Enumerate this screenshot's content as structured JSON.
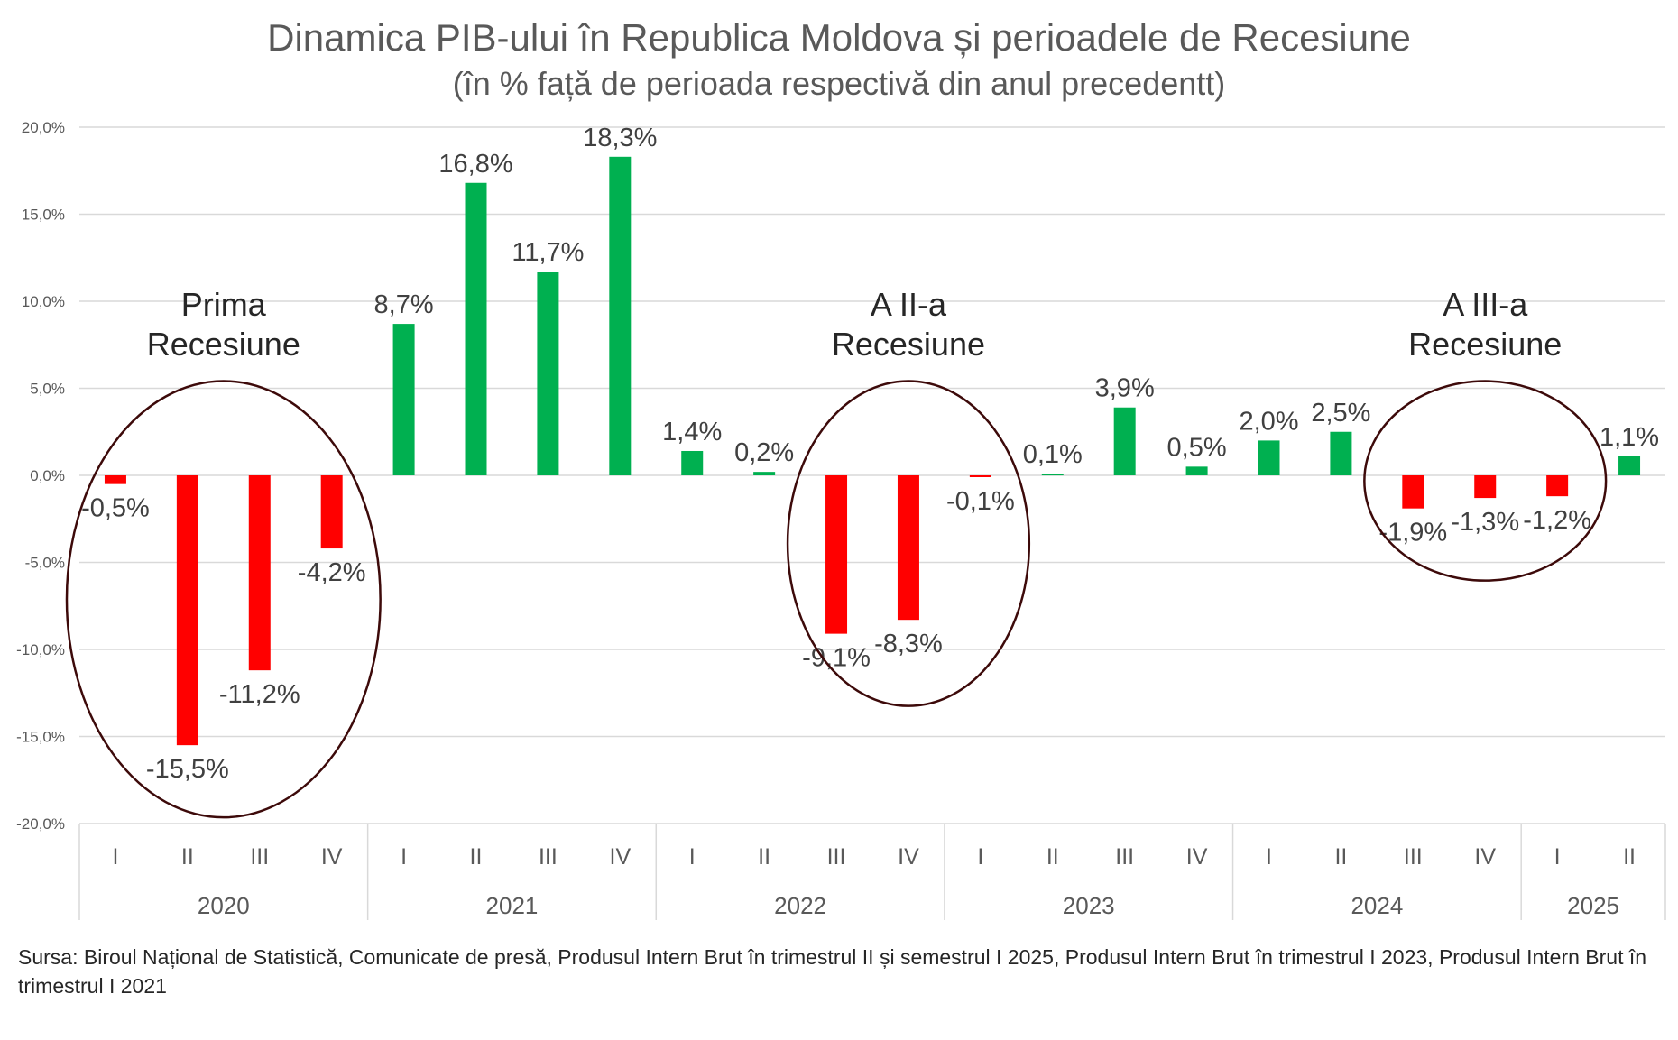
{
  "chart_data": {
    "type": "bar",
    "title": "Dinamica PIB-ului în Republica Moldova și perioadele de Recesiune",
    "subtitle": "(în % față de perioada respectivă din anul precedentt)",
    "xlabel": "",
    "ylabel": "",
    "ylim": [
      -20,
      20
    ],
    "y_ticks": [
      "20,0%",
      "15,0%",
      "10,0%",
      "5,0%",
      "0,0%",
      "-5,0%",
      "-10,0%",
      "-15,0%",
      "-20,0%"
    ],
    "y_tick_values": [
      20,
      15,
      10,
      5,
      0,
      -5,
      -10,
      -15,
      -20
    ],
    "grid": true,
    "legend": "none",
    "colors": {
      "positive": "#00B050",
      "negative": "#FF0000",
      "ellipse": "#3D0A0A"
    },
    "categories": [
      "I",
      "II",
      "III",
      "IV",
      "I",
      "II",
      "III",
      "IV",
      "I",
      "II",
      "III",
      "IV",
      "I",
      "II",
      "III",
      "IV",
      "I",
      "II",
      "III",
      "IV",
      "I",
      "II"
    ],
    "years": [
      {
        "label": "2020",
        "count": 4
      },
      {
        "label": "2021",
        "count": 4
      },
      {
        "label": "2022",
        "count": 4
      },
      {
        "label": "2023",
        "count": 4
      },
      {
        "label": "2024",
        "count": 4
      },
      {
        "label": "2025",
        "count": 2
      }
    ],
    "values": [
      -0.5,
      -15.5,
      -11.2,
      -4.2,
      8.7,
      16.8,
      11.7,
      18.3,
      1.4,
      0.2,
      -9.1,
      -8.3,
      -0.1,
      0.1,
      3.9,
      0.5,
      2.0,
      2.5,
      -1.9,
      -1.3,
      -1.2,
      1.1
    ],
    "data_labels": [
      "-0,5%",
      "-15,5%",
      "-11,2%",
      "-4,2%",
      "8,7%",
      "16,8%",
      "11,7%",
      "18,3%",
      "1,4%",
      "0,2%",
      "-9,1%",
      "-8,3%",
      "-0,1%",
      "0,1%",
      "3,9%",
      "0,5%",
      "2,0%",
      "2,5%",
      "-1,9%",
      "-1,3%",
      "-1,2%",
      "1,1%"
    ],
    "annotations": [
      {
        "lines": [
          "Prima",
          "Recesiune"
        ],
        "from": 0,
        "to": 3
      },
      {
        "lines": [
          "A II-a",
          "Recesiune"
        ],
        "from": 10,
        "to": 12
      },
      {
        "lines": [
          "A III-a",
          "Recesiune"
        ],
        "from": 18,
        "to": 20
      }
    ]
  },
  "source_text": "Sursa: Biroul Național de Statistică, Comunicate de presă, Produsul Intern Brut în trimestrul II și semestrul I 2025, Produsul Intern Brut în trimestrul I 2023, Produsul Intern Brut în trimestrul I 2021"
}
